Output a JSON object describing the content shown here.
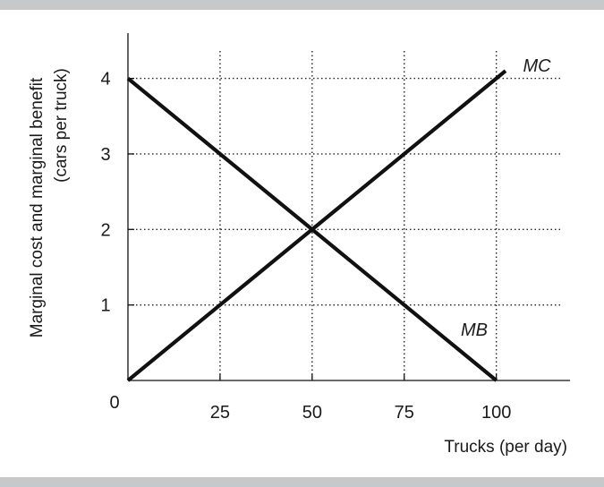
{
  "chart_data": {
    "type": "line",
    "title": "",
    "xlabel": "Trucks (per day)",
    "ylabel_line1": "Marginal cost and marginal benefit",
    "ylabel_line2": "(cars per truck)",
    "origin_label": "0",
    "xlim": [
      0,
      120
    ],
    "ylim": [
      0,
      4.6
    ],
    "x_ticks": [
      25,
      50,
      75,
      100
    ],
    "x_tick_labels": [
      "25",
      "50",
      "75",
      "100"
    ],
    "y_ticks": [
      1,
      2,
      3,
      4
    ],
    "y_tick_labels": [
      "1",
      "2",
      "3",
      "4"
    ],
    "grid": "dotted",
    "series": [
      {
        "name": "MC",
        "x": [
          0,
          50,
          100,
          102.5
        ],
        "y": [
          0,
          2,
          4,
          4.1
        ]
      },
      {
        "name": "MB",
        "x": [
          0,
          50,
          100
        ],
        "y": [
          4,
          2,
          0
        ]
      }
    ],
    "colors": {
      "line": "#111111",
      "grid": "#222222",
      "band": "#c7c8ca"
    }
  }
}
